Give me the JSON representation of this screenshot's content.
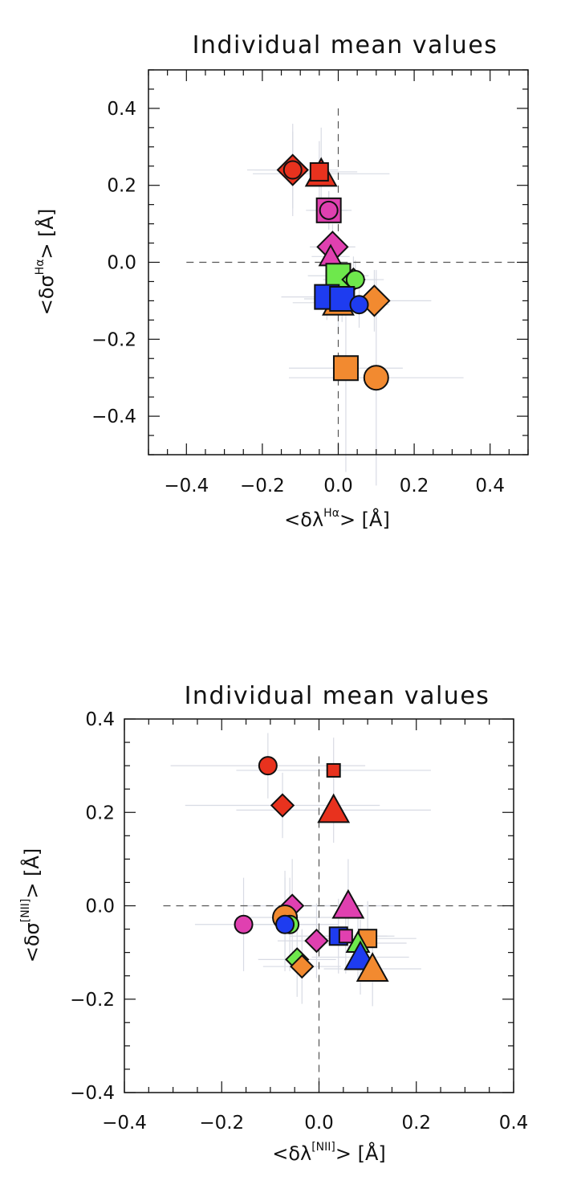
{
  "chart_data": [
    {
      "type": "scatter",
      "title": "Individual mean values",
      "xlabel_main": "<δλ",
      "xlabel_sup": "Hα",
      "xlabel_tail": ">  [Å]",
      "ylabel_main": "<δσ",
      "ylabel_sup": "Hα",
      "ylabel_tail": ">  [Å]",
      "xlim": [
        -0.5,
        0.5
      ],
      "ylim": [
        -0.5,
        0.5
      ],
      "xticks": [
        -0.4,
        -0.2,
        0.0,
        0.2,
        0.4
      ],
      "yticks": [
        -0.4,
        -0.2,
        0.0,
        0.2,
        0.4
      ],
      "xtick_labels": [
        "−0.4",
        "−0.2",
        "0.0",
        "0.2",
        "0.4"
      ],
      "ytick_labels": [
        "−0.4",
        "−0.2",
        "0.0",
        "0.2",
        "0.4"
      ],
      "reference_lines": {
        "x": 0,
        "y": 0
      },
      "points": [
        {
          "x": -0.12,
          "y": 0.24,
          "marker": "diamond",
          "color": "#e8321e",
          "size": "large",
          "xerr": 0.12,
          "yerr": 0.12
        },
        {
          "x": -0.12,
          "y": 0.24,
          "marker": "circle",
          "color": "#e8321e",
          "size": "medium",
          "xerr": 0.1,
          "yerr": 0.1
        },
        {
          "x": -0.045,
          "y": 0.23,
          "marker": "triangle",
          "color": "#e8321e",
          "size": "large",
          "xerr": 0.18,
          "yerr": 0.12
        },
        {
          "x": -0.05,
          "y": 0.235,
          "marker": "square",
          "color": "#e8321e",
          "size": "medium",
          "xerr": 0.1,
          "yerr": 0.08
        },
        {
          "x": -0.025,
          "y": 0.135,
          "marker": "square",
          "color": "#e040b0",
          "size": "large",
          "xerr": 0.06,
          "yerr": 0.05
        },
        {
          "x": -0.025,
          "y": 0.135,
          "marker": "circle",
          "color": "#e040b0",
          "size": "medium",
          "xerr": 0.05,
          "yerr": 0.05
        },
        {
          "x": -0.015,
          "y": 0.04,
          "marker": "diamond",
          "color": "#e040b0",
          "size": "large",
          "xerr": 0.06,
          "yerr": 0.06
        },
        {
          "x": -0.02,
          "y": 0.015,
          "marker": "triangle",
          "color": "#e040b0",
          "size": "medium",
          "xerr": 0.05,
          "yerr": 0.05
        },
        {
          "x": 0.0,
          "y": -0.035,
          "marker": "square",
          "color": "#6ee84c",
          "size": "large",
          "xerr": 0.08,
          "yerr": 0.06
        },
        {
          "x": 0.04,
          "y": -0.045,
          "marker": "diamond",
          "color": "#6ee84c",
          "size": "medium",
          "xerr": 0.08,
          "yerr": 0.06
        },
        {
          "x": 0.045,
          "y": -0.045,
          "marker": "circle",
          "color": "#6ee84c",
          "size": "medium",
          "xerr": 0.06,
          "yerr": 0.05
        },
        {
          "x": 0.095,
          "y": -0.1,
          "marker": "diamond",
          "color": "#f28a30",
          "size": "large",
          "xerr": 0.15,
          "yerr": 0.08
        },
        {
          "x": 0.0,
          "y": -0.105,
          "marker": "triangle",
          "color": "#f28a30",
          "size": "large",
          "xerr": 0.12,
          "yerr": 0.08
        },
        {
          "x": -0.03,
          "y": -0.09,
          "marker": "square",
          "color": "#1e3cf0",
          "size": "large",
          "xerr": 0.12,
          "yerr": 0.06
        },
        {
          "x": 0.01,
          "y": -0.095,
          "marker": "square",
          "color": "#1e3cf0",
          "size": "large",
          "xerr": 0.1,
          "yerr": 0.06
        },
        {
          "x": 0.055,
          "y": -0.11,
          "marker": "circle",
          "color": "#1e3cf0",
          "size": "medium",
          "xerr": 0.08,
          "yerr": 0.06
        },
        {
          "x": 0.02,
          "y": -0.275,
          "marker": "square",
          "color": "#f28a30",
          "size": "large",
          "xerr": 0.15,
          "yerr": 0.27
        },
        {
          "x": 0.1,
          "y": -0.3,
          "marker": "circle",
          "color": "#f28a30",
          "size": "large",
          "xerr": 0.23,
          "yerr": 0.28
        }
      ]
    },
    {
      "type": "scatter",
      "title": "Individual mean values",
      "xlabel_main": "<δλ",
      "xlabel_sup": "[NII]",
      "xlabel_tail": ">  [Å]",
      "ylabel_main": "<δσ",
      "ylabel_sup": "[NII]",
      "ylabel_tail": ">  [Å]",
      "xlim": [
        -0.4,
        0.4
      ],
      "ylim": [
        -0.4,
        0.4
      ],
      "xticks": [
        -0.4,
        -0.2,
        0.0,
        0.2,
        0.4
      ],
      "yticks": [
        -0.4,
        -0.2,
        0.0,
        0.2,
        0.4
      ],
      "xtick_labels": [
        "−0.4",
        "−0.2",
        "0.0",
        "0.2",
        "0.4"
      ],
      "ytick_labels": [
        "−0.4",
        "−0.2",
        "0.0",
        "0.2",
        "0.4"
      ],
      "reference_lines": {
        "x": 0,
        "y": 0
      },
      "points": [
        {
          "x": -0.105,
          "y": 0.3,
          "marker": "circle",
          "color": "#e8321e",
          "size": "medium",
          "xerr": 0.2,
          "yerr": 0.07
        },
        {
          "x": 0.03,
          "y": 0.29,
          "marker": "square",
          "color": "#e8321e",
          "size": "small",
          "xerr": 0.2,
          "yerr": 0.07
        },
        {
          "x": -0.075,
          "y": 0.215,
          "marker": "diamond",
          "color": "#e8321e",
          "size": "medium",
          "xerr": 0.2,
          "yerr": 0.07
        },
        {
          "x": 0.03,
          "y": 0.205,
          "marker": "triangle",
          "color": "#e8321e",
          "size": "large",
          "xerr": 0.2,
          "yerr": 0.07
        },
        {
          "x": -0.055,
          "y": 0.0,
          "marker": "diamond",
          "color": "#e040b0",
          "size": "medium",
          "xerr": 0.1,
          "yerr": 0.1
        },
        {
          "x": 0.06,
          "y": 0.0,
          "marker": "triangle",
          "color": "#e040b0",
          "size": "large",
          "xerr": 0.1,
          "yerr": 0.1
        },
        {
          "x": -0.155,
          "y": -0.04,
          "marker": "circle",
          "color": "#e040b0",
          "size": "medium",
          "xerr": 0.1,
          "yerr": 0.1
        },
        {
          "x": -0.07,
          "y": -0.025,
          "marker": "circle",
          "color": "#f28a30",
          "size": "large",
          "xerr": 0.1,
          "yerr": 0.1
        },
        {
          "x": -0.06,
          "y": -0.04,
          "marker": "circle",
          "color": "#6ee84c",
          "size": "medium",
          "xerr": 0.1,
          "yerr": 0.1
        },
        {
          "x": -0.07,
          "y": -0.04,
          "marker": "circle",
          "color": "#1e3cf0",
          "size": "medium",
          "xerr": 0.1,
          "yerr": 0.1
        },
        {
          "x": -0.005,
          "y": -0.075,
          "marker": "diamond",
          "color": "#e040b0",
          "size": "medium",
          "xerr": 0.08,
          "yerr": 0.08
        },
        {
          "x": -0.045,
          "y": -0.115,
          "marker": "diamond",
          "color": "#6ee84c",
          "size": "medium",
          "xerr": 0.08,
          "yerr": 0.08
        },
        {
          "x": -0.035,
          "y": -0.13,
          "marker": "diamond",
          "color": "#f28a30",
          "size": "medium",
          "xerr": 0.08,
          "yerr": 0.08
        },
        {
          "x": 0.1,
          "y": -0.07,
          "marker": "square",
          "color": "#f28a30",
          "size": "medium",
          "xerr": 0.1,
          "yerr": 0.08
        },
        {
          "x": 0.08,
          "y": -0.08,
          "marker": "triangle",
          "color": "#6ee84c",
          "size": "medium",
          "xerr": 0.1,
          "yerr": 0.08
        },
        {
          "x": 0.04,
          "y": -0.065,
          "marker": "square",
          "color": "#1e3cf0",
          "size": "medium",
          "xerr": 0.1,
          "yerr": 0.08
        },
        {
          "x": 0.055,
          "y": -0.065,
          "marker": "square",
          "color": "#e040b0",
          "size": "small",
          "xerr": 0.1,
          "yerr": 0.08
        },
        {
          "x": 0.085,
          "y": -0.11,
          "marker": "triangle",
          "color": "#1e3cf0",
          "size": "large",
          "xerr": 0.1,
          "yerr": 0.08
        },
        {
          "x": 0.11,
          "y": -0.135,
          "marker": "triangle",
          "color": "#f28a30",
          "size": "large",
          "xerr": 0.1,
          "yerr": 0.08
        }
      ]
    }
  ]
}
